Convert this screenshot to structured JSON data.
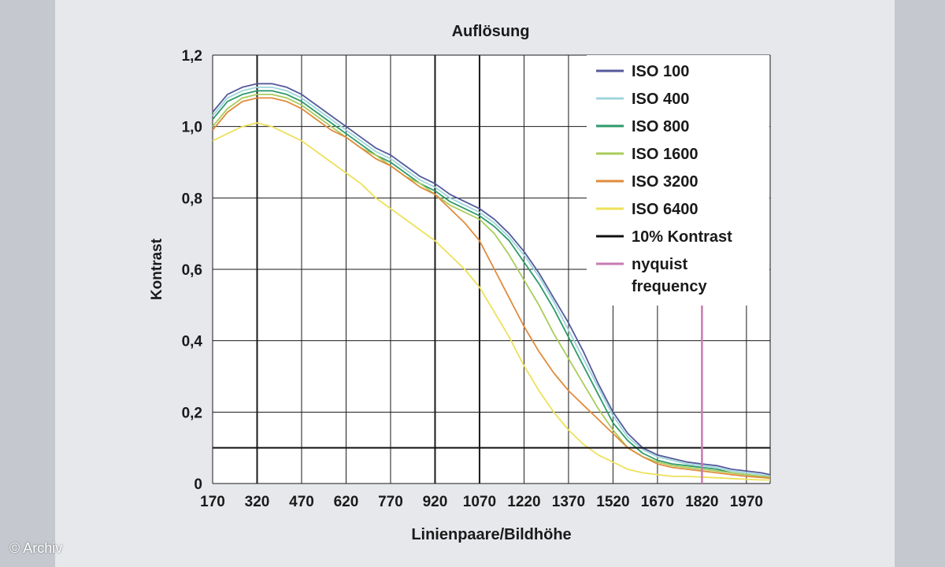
{
  "credit": "© Archiv",
  "chart_data": {
    "type": "line",
    "title": "Auflösung",
    "xlabel": "Linienpaare/Bildhöhe",
    "ylabel": "Kontrast",
    "xlim": [
      170,
      2050
    ],
    "ylim": [
      0,
      1.2
    ],
    "xticks": [
      170,
      320,
      470,
      620,
      770,
      920,
      1070,
      1220,
      1370,
      1520,
      1670,
      1820,
      1970
    ],
    "xtick_labels": [
      "170",
      "320",
      "470",
      "620",
      "770",
      "920",
      "1070",
      "1220",
      "1370",
      "1520",
      "1670",
      "1820",
      "1970"
    ],
    "yticks": [
      0,
      0.2,
      0.4,
      0.6,
      0.8,
      1.0,
      1.2
    ],
    "ytick_labels": [
      "0",
      "0,2",
      "0,4",
      "0,6",
      "0,8",
      "1,0",
      "1,2"
    ],
    "grid": true,
    "legend_position": "top-right",
    "colors": {
      "ISO 100": "#545a9a",
      "ISO 400": "#9fd6dc",
      "ISO 800": "#2e9a6a",
      "ISO 1600": "#a9cc5a",
      "ISO 3200": "#e08b3c",
      "ISO 6400": "#ede15a",
      "10% Kontrast": "#111111",
      "nyquist frequency": "#c77bb0"
    },
    "x": [
      170,
      220,
      270,
      320,
      370,
      420,
      470,
      520,
      570,
      620,
      670,
      720,
      770,
      820,
      870,
      920,
      970,
      1020,
      1070,
      1120,
      1170,
      1220,
      1270,
      1320,
      1370,
      1420,
      1470,
      1520,
      1570,
      1620,
      1670,
      1720,
      1770,
      1820,
      1870,
      1920,
      1970,
      2020,
      2050
    ],
    "series": [
      {
        "name": "ISO 100",
        "values": [
          1.04,
          1.09,
          1.11,
          1.12,
          1.12,
          1.11,
          1.09,
          1.06,
          1.03,
          1.0,
          0.97,
          0.94,
          0.92,
          0.89,
          0.86,
          0.84,
          0.81,
          0.79,
          0.77,
          0.74,
          0.7,
          0.65,
          0.59,
          0.52,
          0.45,
          0.37,
          0.28,
          0.2,
          0.14,
          0.1,
          0.08,
          0.07,
          0.06,
          0.055,
          0.05,
          0.04,
          0.035,
          0.03,
          0.025
        ]
      },
      {
        "name": "ISO 400",
        "values": [
          1.03,
          1.08,
          1.1,
          1.11,
          1.11,
          1.1,
          1.08,
          1.05,
          1.02,
          0.99,
          0.96,
          0.93,
          0.91,
          0.88,
          0.85,
          0.83,
          0.8,
          0.78,
          0.76,
          0.73,
          0.69,
          0.64,
          0.58,
          0.51,
          0.43,
          0.35,
          0.27,
          0.19,
          0.13,
          0.095,
          0.075,
          0.065,
          0.055,
          0.05,
          0.045,
          0.035,
          0.03,
          0.025,
          0.02
        ]
      },
      {
        "name": "ISO 800",
        "values": [
          1.02,
          1.07,
          1.09,
          1.1,
          1.1,
          1.09,
          1.07,
          1.04,
          1.01,
          0.98,
          0.95,
          0.92,
          0.9,
          0.87,
          0.84,
          0.82,
          0.79,
          0.77,
          0.75,
          0.72,
          0.68,
          0.62,
          0.56,
          0.49,
          0.41,
          0.33,
          0.25,
          0.17,
          0.12,
          0.085,
          0.065,
          0.055,
          0.05,
          0.045,
          0.04,
          0.03,
          0.025,
          0.02,
          0.018
        ]
      },
      {
        "name": "ISO 1600",
        "values": [
          1.0,
          1.05,
          1.08,
          1.09,
          1.09,
          1.08,
          1.06,
          1.03,
          1.0,
          0.97,
          0.94,
          0.92,
          0.89,
          0.86,
          0.84,
          0.81,
          0.78,
          0.76,
          0.74,
          0.7,
          0.64,
          0.57,
          0.5,
          0.42,
          0.35,
          0.28,
          0.21,
          0.15,
          0.1,
          0.075,
          0.06,
          0.05,
          0.045,
          0.04,
          0.035,
          0.03,
          0.025,
          0.02,
          0.018
        ]
      },
      {
        "name": "ISO 3200",
        "values": [
          0.99,
          1.04,
          1.07,
          1.08,
          1.08,
          1.07,
          1.05,
          1.02,
          0.99,
          0.97,
          0.94,
          0.91,
          0.89,
          0.86,
          0.83,
          0.81,
          0.77,
          0.73,
          0.68,
          0.6,
          0.52,
          0.44,
          0.37,
          0.31,
          0.26,
          0.22,
          0.18,
          0.14,
          0.1,
          0.075,
          0.055,
          0.045,
          0.04,
          0.035,
          0.03,
          0.025,
          0.02,
          0.017,
          0.015
        ]
      },
      {
        "name": "ISO 6400",
        "values": [
          0.96,
          0.98,
          1.0,
          1.01,
          1.0,
          0.98,
          0.96,
          0.93,
          0.9,
          0.87,
          0.84,
          0.8,
          0.77,
          0.74,
          0.71,
          0.68,
          0.64,
          0.6,
          0.55,
          0.48,
          0.41,
          0.33,
          0.26,
          0.2,
          0.15,
          0.11,
          0.08,
          0.06,
          0.04,
          0.03,
          0.025,
          0.02,
          0.02,
          0.018,
          0.016,
          0.014,
          0.012,
          0.01,
          0.01
        ]
      }
    ],
    "reference_lines": [
      {
        "name": "10% Kontrast",
        "axis": "y",
        "value": 0.1
      },
      {
        "name": "nyquist frequency",
        "axis": "x",
        "value": 1820
      }
    ],
    "legend": [
      {
        "label": "ISO 100"
      },
      {
        "label": "ISO 400"
      },
      {
        "label": "ISO 800"
      },
      {
        "label": "ISO 1600"
      },
      {
        "label": "ISO 3200"
      },
      {
        "label": "ISO 6400"
      },
      {
        "label": "10% Kontrast"
      },
      {
        "label": "nyquist",
        "label2": "frequency"
      }
    ]
  }
}
